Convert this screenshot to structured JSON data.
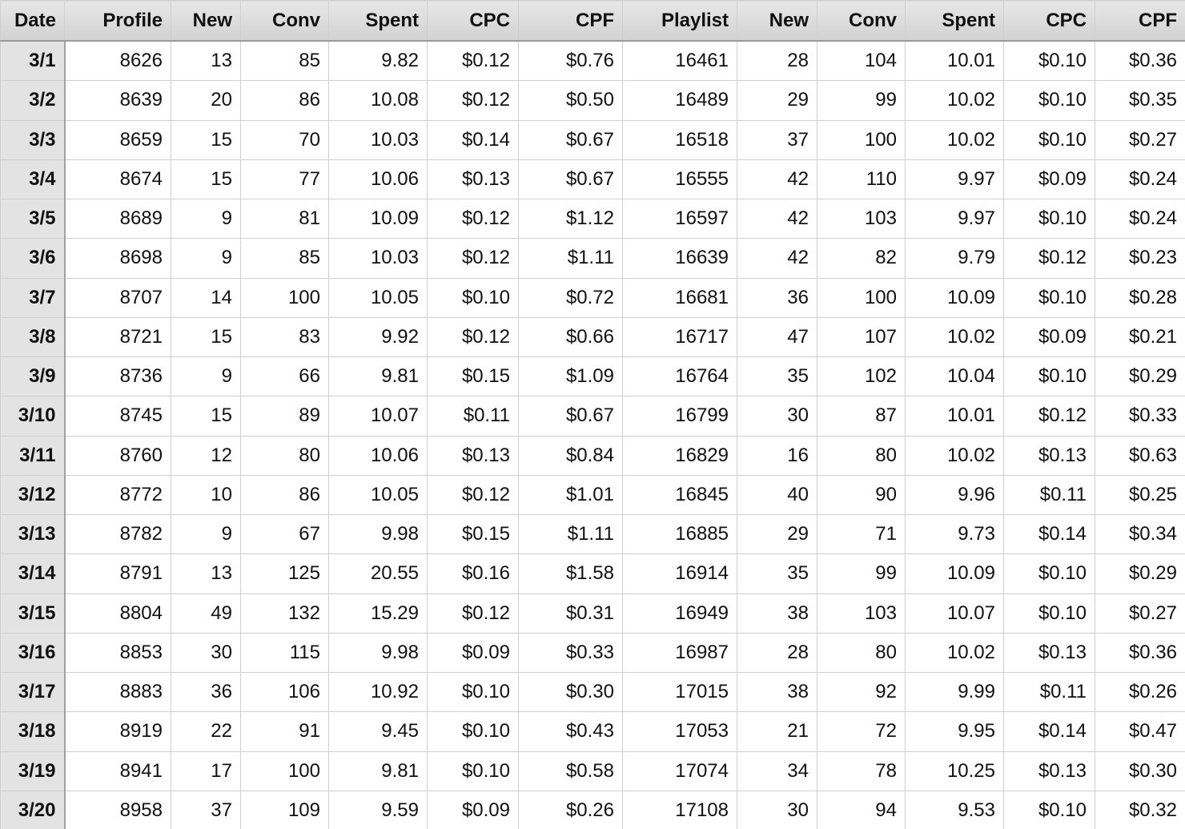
{
  "table": {
    "columns": [
      "Date",
      "Profile",
      "New",
      "Conv",
      "Spent",
      "CPC",
      "CPF",
      "Playlist",
      "New",
      "Conv",
      "Spent",
      "CPC",
      "CPF"
    ],
    "rows": [
      [
        "3/1",
        "8626",
        "13",
        "85",
        "9.82",
        "$0.12",
        "$0.76",
        "16461",
        "28",
        "104",
        "10.01",
        "$0.10",
        "$0.36"
      ],
      [
        "3/2",
        "8639",
        "20",
        "86",
        "10.08",
        "$0.12",
        "$0.50",
        "16489",
        "29",
        "99",
        "10.02",
        "$0.10",
        "$0.35"
      ],
      [
        "3/3",
        "8659",
        "15",
        "70",
        "10.03",
        "$0.14",
        "$0.67",
        "16518",
        "37",
        "100",
        "10.02",
        "$0.10",
        "$0.27"
      ],
      [
        "3/4",
        "8674",
        "15",
        "77",
        "10.06",
        "$0.13",
        "$0.67",
        "16555",
        "42",
        "110",
        "9.97",
        "$0.09",
        "$0.24"
      ],
      [
        "3/5",
        "8689",
        "9",
        "81",
        "10.09",
        "$0.12",
        "$1.12",
        "16597",
        "42",
        "103",
        "9.97",
        "$0.10",
        "$0.24"
      ],
      [
        "3/6",
        "8698",
        "9",
        "85",
        "10.03",
        "$0.12",
        "$1.11",
        "16639",
        "42",
        "82",
        "9.79",
        "$0.12",
        "$0.23"
      ],
      [
        "3/7",
        "8707",
        "14",
        "100",
        "10.05",
        "$0.10",
        "$0.72",
        "16681",
        "36",
        "100",
        "10.09",
        "$0.10",
        "$0.28"
      ],
      [
        "3/8",
        "8721",
        "15",
        "83",
        "9.92",
        "$0.12",
        "$0.66",
        "16717",
        "47",
        "107",
        "10.02",
        "$0.09",
        "$0.21"
      ],
      [
        "3/9",
        "8736",
        "9",
        "66",
        "9.81",
        "$0.15",
        "$1.09",
        "16764",
        "35",
        "102",
        "10.04",
        "$0.10",
        "$0.29"
      ],
      [
        "3/10",
        "8745",
        "15",
        "89",
        "10.07",
        "$0.11",
        "$0.67",
        "16799",
        "30",
        "87",
        "10.01",
        "$0.12",
        "$0.33"
      ],
      [
        "3/11",
        "8760",
        "12",
        "80",
        "10.06",
        "$0.13",
        "$0.84",
        "16829",
        "16",
        "80",
        "10.02",
        "$0.13",
        "$0.63"
      ],
      [
        "3/12",
        "8772",
        "10",
        "86",
        "10.05",
        "$0.12",
        "$1.01",
        "16845",
        "40",
        "90",
        "9.96",
        "$0.11",
        "$0.25"
      ],
      [
        "3/13",
        "8782",
        "9",
        "67",
        "9.98",
        "$0.15",
        "$1.11",
        "16885",
        "29",
        "71",
        "9.73",
        "$0.14",
        "$0.34"
      ],
      [
        "3/14",
        "8791",
        "13",
        "125",
        "20.55",
        "$0.16",
        "$1.58",
        "16914",
        "35",
        "99",
        "10.09",
        "$0.10",
        "$0.29"
      ],
      [
        "3/15",
        "8804",
        "49",
        "132",
        "15.29",
        "$0.12",
        "$0.31",
        "16949",
        "38",
        "103",
        "10.07",
        "$0.10",
        "$0.27"
      ],
      [
        "3/16",
        "8853",
        "30",
        "115",
        "9.98",
        "$0.09",
        "$0.33",
        "16987",
        "28",
        "80",
        "10.02",
        "$0.13",
        "$0.36"
      ],
      [
        "3/17",
        "8883",
        "36",
        "106",
        "10.92",
        "$0.10",
        "$0.30",
        "17015",
        "38",
        "92",
        "9.99",
        "$0.11",
        "$0.26"
      ],
      [
        "3/18",
        "8919",
        "22",
        "91",
        "9.45",
        "$0.10",
        "$0.43",
        "17053",
        "21",
        "72",
        "9.95",
        "$0.14",
        "$0.47"
      ],
      [
        "3/19",
        "8941",
        "17",
        "100",
        "9.81",
        "$0.10",
        "$0.58",
        "17074",
        "34",
        "78",
        "10.25",
        "$0.13",
        "$0.30"
      ],
      [
        "3/20",
        "8958",
        "37",
        "109",
        "9.59",
        "$0.09",
        "$0.26",
        "17108",
        "30",
        "94",
        "9.53",
        "$0.10",
        "$0.32"
      ]
    ]
  }
}
